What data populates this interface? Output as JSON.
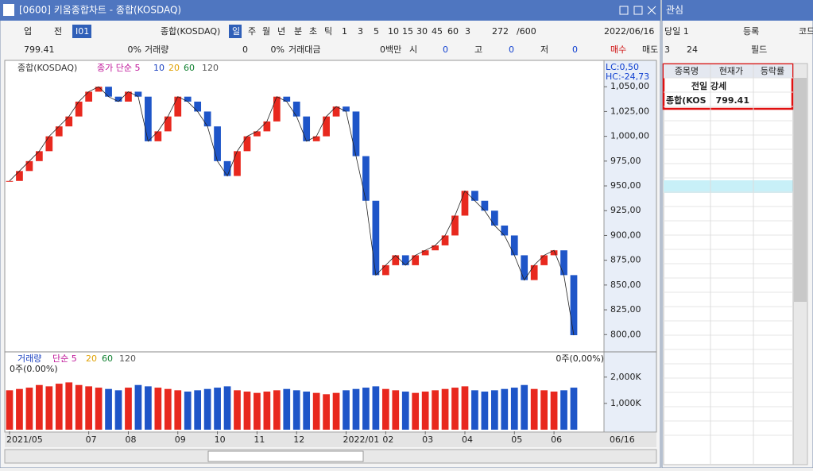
{
  "window": {
    "title": "[0600] 키움종합차트 - 종합(KOSDAQ)"
  },
  "toolbar": [
    "업",
    "전",
    "I01",
    "종합(KOSDAQ)",
    "일",
    "주",
    "월",
    "년",
    "분",
    "초",
    "틱",
    "1",
    "3",
    "5",
    "10",
    "15",
    "30",
    "45",
    "60",
    "3",
    "272",
    "/600",
    "2022/06/16",
    "당일 1",
    "등록",
    "코드등"
  ],
  "info_row": [
    "799.41",
    "0%",
    "거래량",
    "0",
    "0%",
    "거래대금",
    "0백만",
    "시",
    "0",
    "고",
    "0",
    "저",
    "0",
    "매수",
    "매도",
    "3",
    "24",
    "필드"
  ],
  "price_legend": [
    "종합(KOSDAQ)",
    "종가 단순 5",
    "10",
    "20",
    "60",
    "120"
  ],
  "price_info": [
    "LC:0,50",
    "HC:-24,73"
  ],
  "volume_legend": [
    "거래량",
    "단순 5",
    "20",
    "60",
    "120"
  ],
  "volume_info": [
    "0주(0.00%)",
    "0주(0,00%)"
  ],
  "x_end_label": "06/16",
  "chart_data": {
    "type": "bar",
    "categories": [
      "2021/05",
      null,
      null,
      null,
      null,
      null,
      null,
      null,
      "07",
      null,
      null,
      null,
      "08",
      null,
      null,
      null,
      null,
      "09",
      null,
      null,
      null,
      "10",
      null,
      null,
      null,
      "11",
      null,
      null,
      null,
      "12",
      null,
      null,
      null,
      null,
      "2022/01",
      null,
      null,
      null,
      "02",
      null,
      null,
      null,
      "03",
      null,
      null,
      null,
      "04",
      null,
      null,
      null,
      null,
      "05",
      null,
      null,
      null,
      "06",
      null,
      null
    ],
    "closes": [
      955,
      965,
      975,
      985,
      1000,
      1010,
      1020,
      1035,
      1045,
      1050,
      1040,
      1035,
      1045,
      1040,
      995,
      1005,
      1020,
      1040,
      1035,
      1025,
      1010,
      975,
      960,
      985,
      1000,
      1005,
      1015,
      1040,
      1035,
      1020,
      995,
      1000,
      1020,
      1030,
      1025,
      980,
      935,
      860,
      870,
      880,
      870,
      880,
      885,
      890,
      900,
      920,
      945,
      935,
      925,
      910,
      900,
      880,
      855,
      870,
      880,
      885,
      860,
      799.41
    ],
    "volumes": [
      1500,
      1550,
      1600,
      1700,
      1650,
      1750,
      1800,
      1700,
      1650,
      1600,
      1550,
      1500,
      1600,
      1700,
      1650,
      1600,
      1550,
      1500,
      1450,
      1500,
      1550,
      1600,
      1650,
      1500,
      1450,
      1400,
      1450,
      1500,
      1550,
      1500,
      1450,
      1400,
      1350,
      1400,
      1500,
      1550,
      1600,
      1650,
      1550,
      1500,
      1450,
      1400,
      1450,
      1500,
      1550,
      1600,
      1650,
      1500,
      1450,
      1500,
      1550,
      1600,
      1700,
      1550,
      1500,
      1450,
      1500,
      1600
    ],
    "up_color": "#e8281e",
    "down_color": "#1e55c8",
    "ylim": [
      785,
      1075
    ],
    "yticks": [
      {
        "value": 800,
        "label": "800,00"
      },
      {
        "value": 825,
        "label": "825,00"
      },
      {
        "value": 850,
        "label": "850,00"
      },
      {
        "value": 875,
        "label": "875,00"
      },
      {
        "value": 900,
        "label": "900,00"
      },
      {
        "value": 925,
        "label": "925,00"
      },
      {
        "value": 950,
        "label": "950,00"
      },
      {
        "value": 975,
        "label": "975,00"
      },
      {
        "value": 1000,
        "label": "1,000,00"
      },
      {
        "value": 1025,
        "label": "1,025,00"
      },
      {
        "value": 1050,
        "label": "1,050,00"
      }
    ],
    "vlim": [
      0,
      2900
    ],
    "vticks": [
      {
        "value": 1000,
        "label": "1,000K"
      },
      {
        "value": 2000,
        "label": "2,000K"
      }
    ]
  },
  "watchlist": {
    "title": "관심",
    "headers": [
      "종목명",
      "현재가",
      "등락률"
    ],
    "group": "전일 강세",
    "rows": [
      [
        "종합(KOS",
        "799.41"
      ]
    ]
  }
}
